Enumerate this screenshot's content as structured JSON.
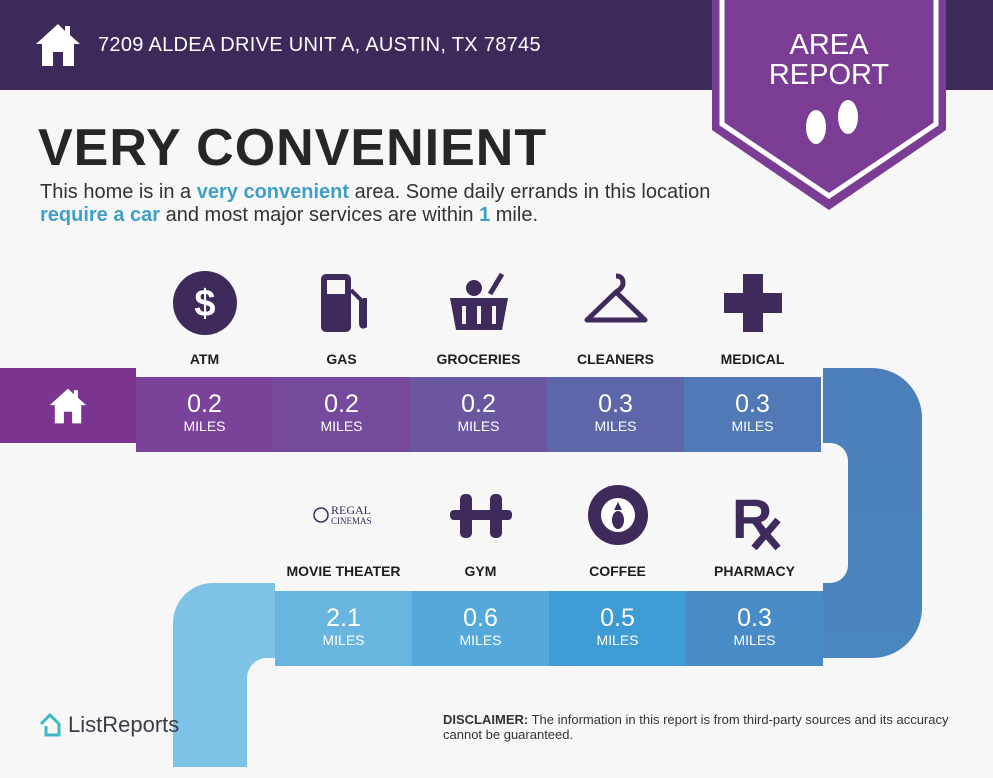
{
  "header": {
    "address": "7209 ALDEA DRIVE UNIT A, AUSTIN, TX 78745",
    "badge_line1": "AREA",
    "badge_line2": "REPORT"
  },
  "title": "VERY CONVENIENT",
  "description": {
    "p1": "This home is in a ",
    "h1": "very convenient",
    "p2": " area. Some daily errands in this location ",
    "h2": "require a car",
    "p3": " and most major services are within ",
    "h3": "1",
    "p4": " mile."
  },
  "unit": "MILES",
  "row1": [
    {
      "label": "ATM",
      "distance": "0.2",
      "icon": "dollar-icon",
      "color": "#7a4299"
    },
    {
      "label": "GAS",
      "distance": "0.2",
      "icon": "gas-pump-icon",
      "color": "#754a9c"
    },
    {
      "label": "GROCERIES",
      "distance": "0.2",
      "icon": "basket-icon",
      "color": "#6b57a0"
    },
    {
      "label": "CLEANERS",
      "distance": "0.3",
      "icon": "hanger-icon",
      "color": "#5d66a8"
    },
    {
      "label": "MEDICAL",
      "distance": "0.3",
      "icon": "medical-cross-icon",
      "color": "#5079b5"
    }
  ],
  "row2": [
    {
      "label": "MOVIE THEATER",
      "distance": "2.1",
      "icon": "regal-cinemas-logo",
      "logo_text": "REGAL CINEMAS",
      "color": "#68b6e0"
    },
    {
      "label": "GYM",
      "distance": "0.6",
      "icon": "dumbbell-icon",
      "color": "#54a9da"
    },
    {
      "label": "COFFEE",
      "distance": "0.5",
      "icon": "starbucks-logo",
      "color": "#3f9bd3"
    },
    {
      "label": "PHARMACY",
      "distance": "0.3",
      "icon": "rx-icon",
      "color": "#488bc6"
    }
  ],
  "footer": {
    "brand": "ListReports",
    "disclaimer_label": "DISCLAIMER:",
    "disclaimer_text": " The information in this report is from third-party sources and its accuracy cannot be guaranteed."
  },
  "colors": {
    "header": "#3c2a5a",
    "badge": "#7b3d93",
    "icon": "#3f2a5c",
    "highlight": "#3f9fc6"
  }
}
